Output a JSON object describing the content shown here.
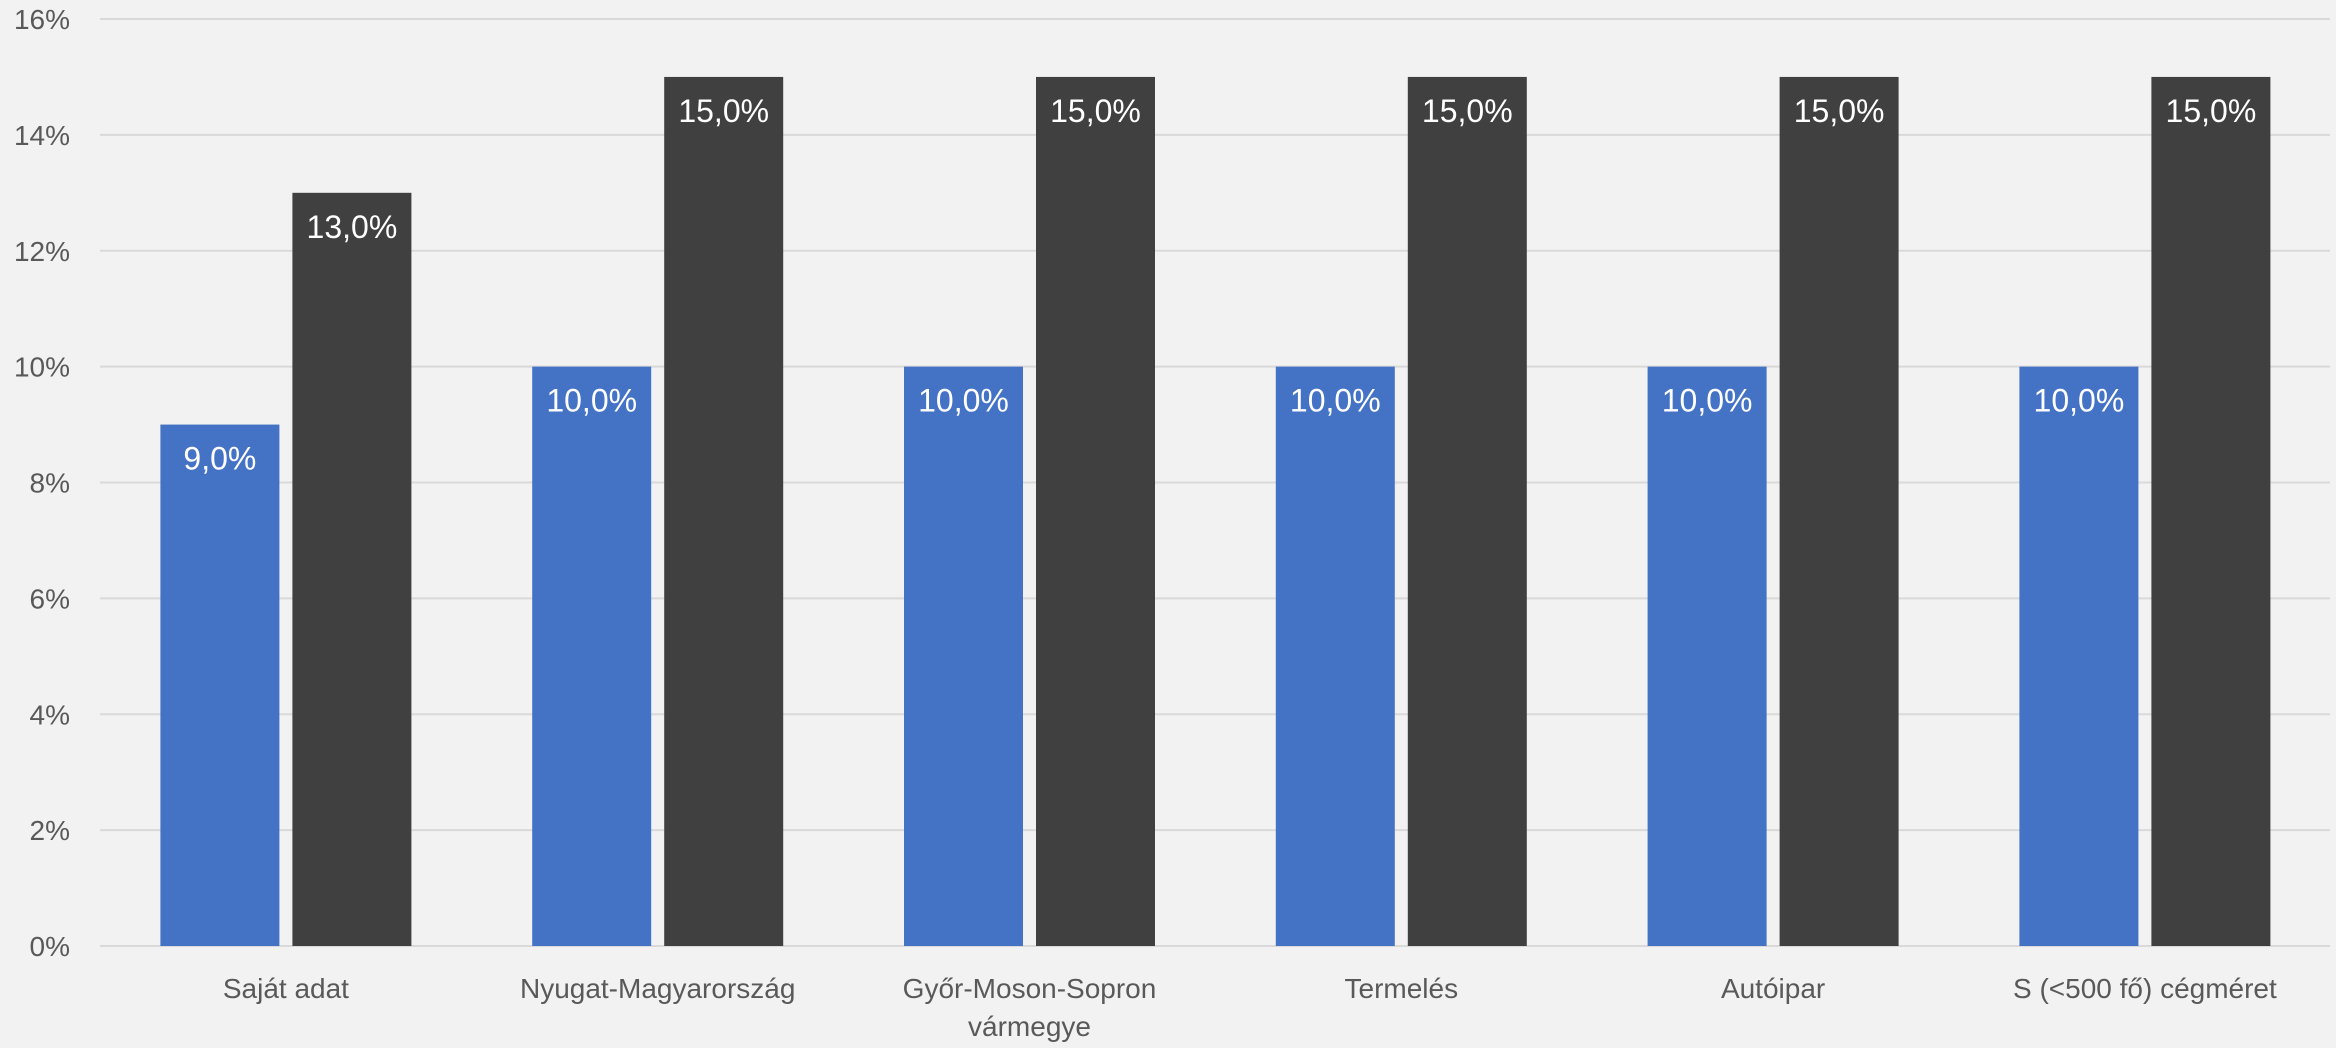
{
  "chart_data": {
    "type": "bar",
    "title": "",
    "xlabel": "",
    "ylabel": "",
    "ylim": [
      0,
      16
    ],
    "y_ticks": [
      "0%",
      "2%",
      "4%",
      "6%",
      "8%",
      "10%",
      "12%",
      "14%",
      "16%"
    ],
    "y_tick_values": [
      0,
      2,
      4,
      6,
      8,
      10,
      12,
      14,
      16
    ],
    "grid": true,
    "legend": "none",
    "categories": [
      [
        "Saját adat"
      ],
      [
        "Nyugat-Magyarország"
      ],
      [
        "Győr-Moson-Sopron",
        "vármegye"
      ],
      [
        "Termelés"
      ],
      [
        "Autóipar"
      ],
      [
        "S (<500 fő) cégméret"
      ]
    ],
    "series": [
      {
        "color": "#4472c4",
        "values": [
          9.0,
          10.0,
          10.0,
          10.0,
          10.0,
          10.0
        ],
        "labels": [
          "9,0%",
          "10,0%",
          "10,0%",
          "10,0%",
          "10,0%",
          "10,0%"
        ]
      },
      {
        "color": "#404040",
        "values": [
          13.0,
          15.0,
          15.0,
          15.0,
          15.0,
          15.0
        ],
        "labels": [
          "13,0%",
          "15,0%",
          "15,0%",
          "15,0%",
          "15,0%",
          "15,0%"
        ]
      }
    ]
  }
}
